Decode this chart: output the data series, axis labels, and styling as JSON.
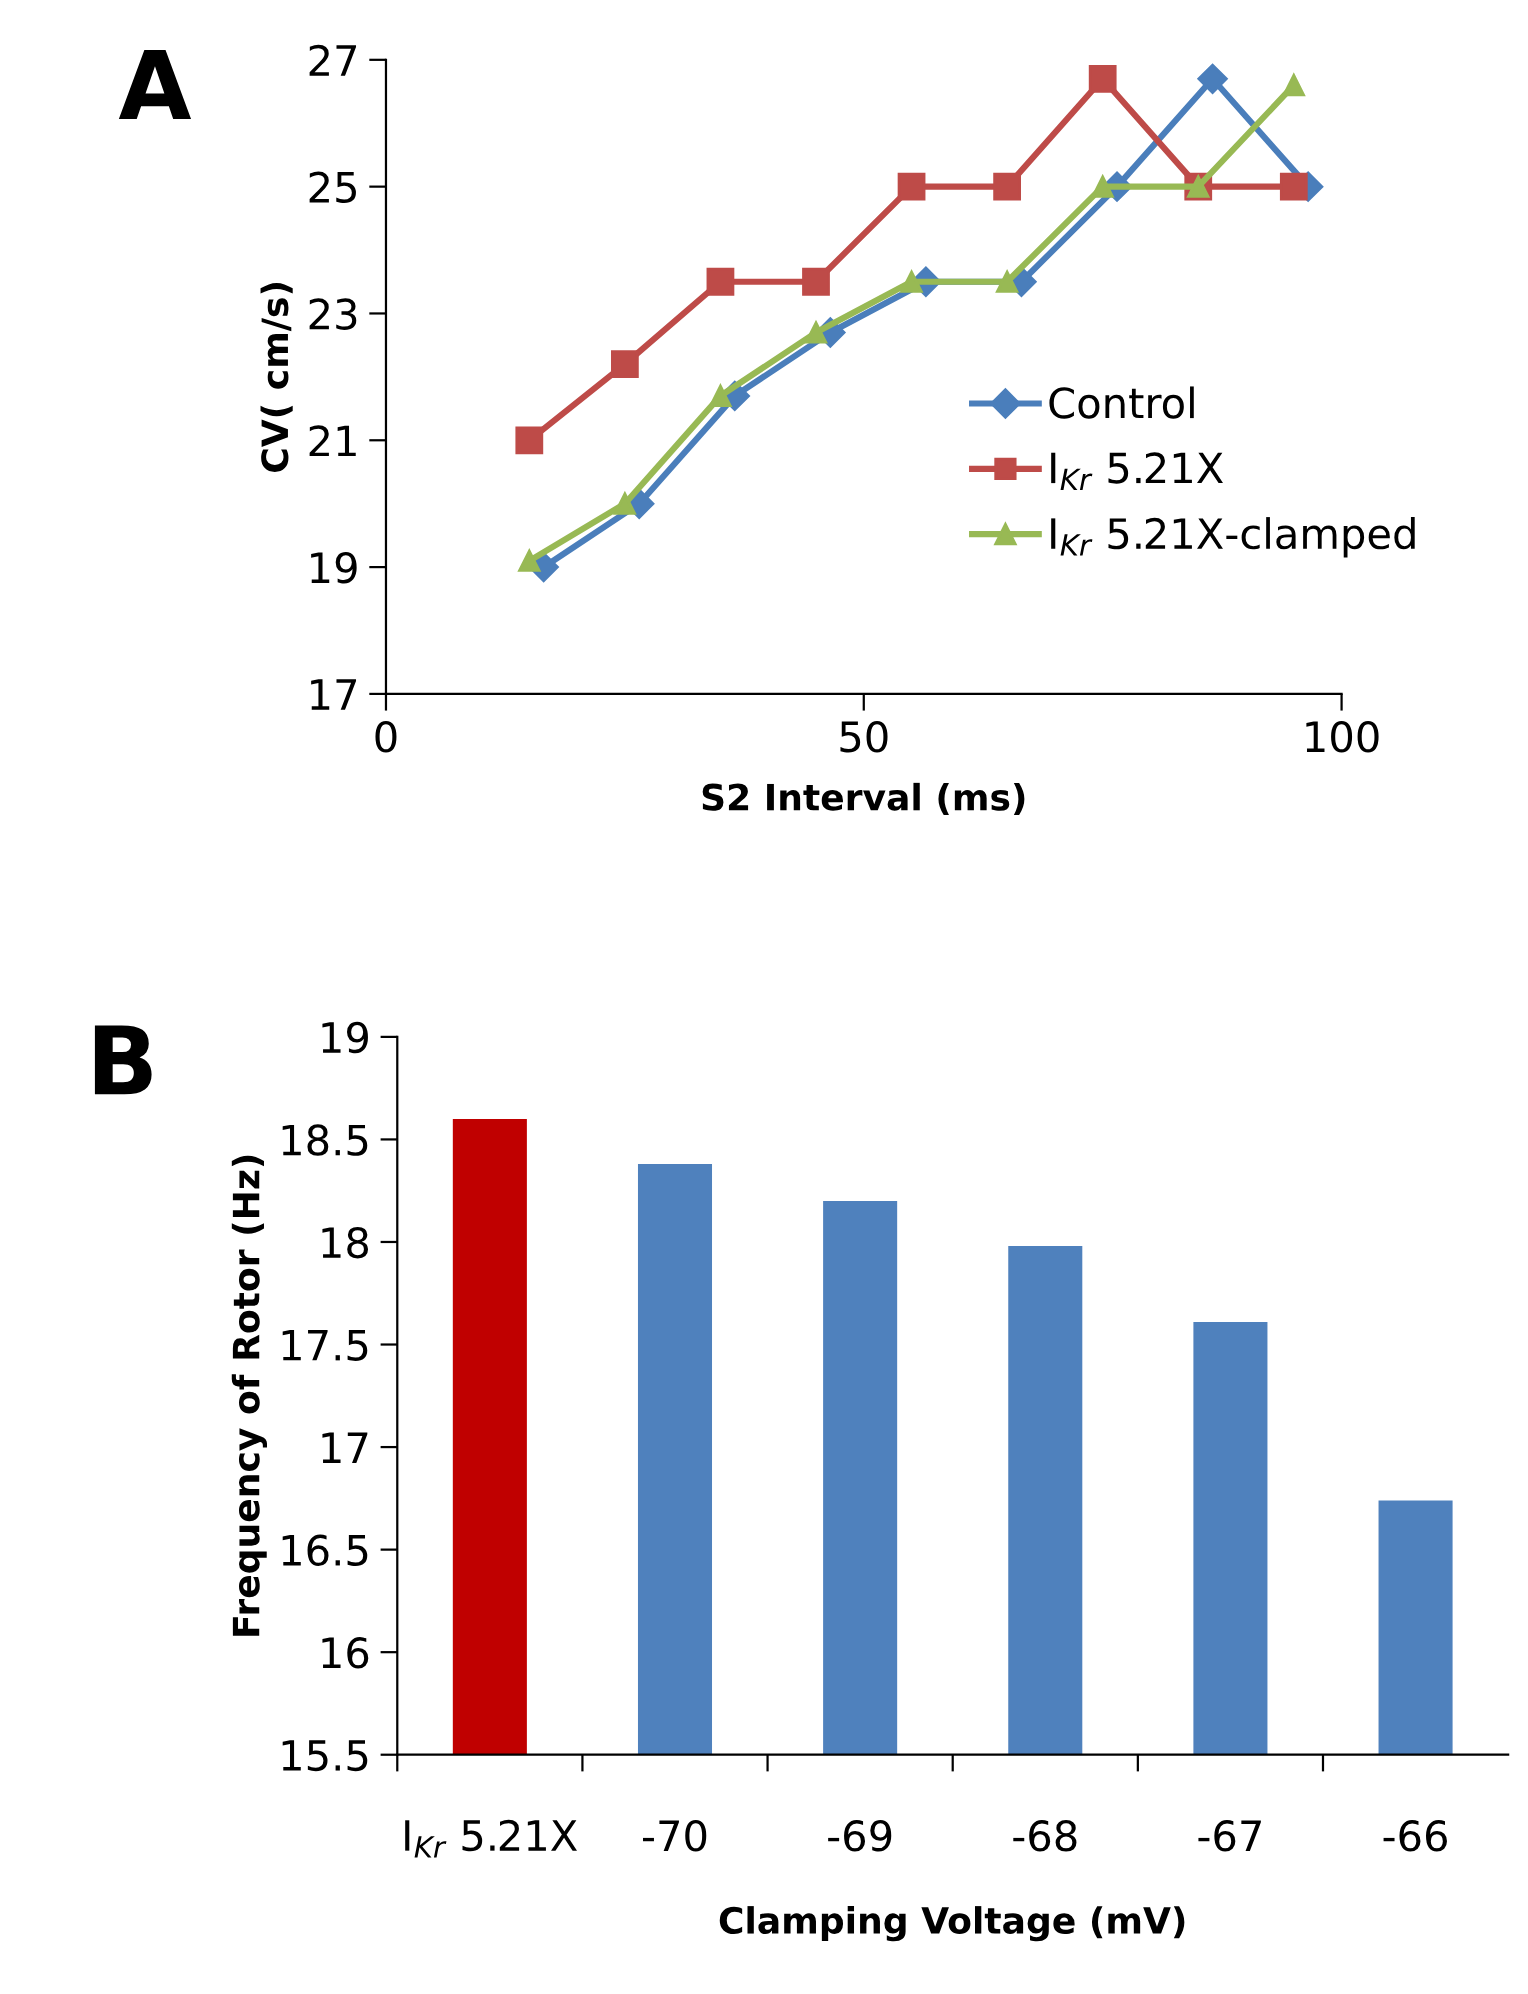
{
  "chart_data": [
    {
      "type": "line",
      "title": "A",
      "xlabel": "S2 Interval (ms)",
      "ylabel": "CV( cm/s)",
      "xlim": [
        0,
        100
      ],
      "xticks": [
        0,
        50,
        100
      ],
      "ylim": [
        17,
        27
      ],
      "yticks": [
        17,
        19,
        21,
        23,
        25,
        27
      ],
      "grid": false,
      "legend": "right",
      "line_style": "solid",
      "series": [
        {
          "name": "Control",
          "color": "#4a7ebb",
          "marker": "diamond",
          "x": [
            16.5,
            26.5,
            36.5,
            46.5,
            56.5,
            66.5,
            76.5,
            86.5,
            96.5
          ],
          "values": [
            19.0,
            20.0,
            21.7,
            22.7,
            23.5,
            23.5,
            25.0,
            26.7,
            25.0
          ]
        },
        {
          "name": "I$_{Kr}$ 5.21X",
          "color": "#be4b48",
          "marker": "square",
          "x": [
            15,
            25,
            35,
            45,
            55,
            65,
            75,
            85,
            95
          ],
          "values": [
            21.0,
            22.2,
            23.5,
            23.5,
            25.0,
            25.0,
            26.7,
            25.0,
            25.0
          ]
        },
        {
          "name": "I$_{Kr}$ 5.21X-clamped",
          "color": "#98b954",
          "marker": "triangle",
          "x": [
            15,
            25,
            35,
            45,
            55,
            65,
            75,
            85,
            95
          ],
          "values": [
            19.1,
            20.0,
            21.7,
            22.7,
            23.5,
            23.5,
            25.0,
            25.0,
            26.6
          ]
        }
      ]
    },
    {
      "type": "bar",
      "title": "B",
      "xlabel": "Clamping Voltage (mV)",
      "ylabel": "Frequency of Rotor (Hz)",
      "ylim": [
        15.5,
        19
      ],
      "yticks": [
        15.5,
        16,
        16.5,
        17,
        17.5,
        18,
        18.5,
        19
      ],
      "grid": false,
      "legend": false,
      "categories": [
        "I$_{Kr}$ 5.21X",
        "-70",
        "-69",
        "-68",
        "-67",
        "-66"
      ],
      "values": [
        18.6,
        18.38,
        18.2,
        17.98,
        17.61,
        16.74
      ],
      "colors": [
        "#c00000",
        "#4f81bd",
        "#4f81bd",
        "#4f81bd",
        "#4f81bd",
        "#4f81bd"
      ]
    }
  ]
}
